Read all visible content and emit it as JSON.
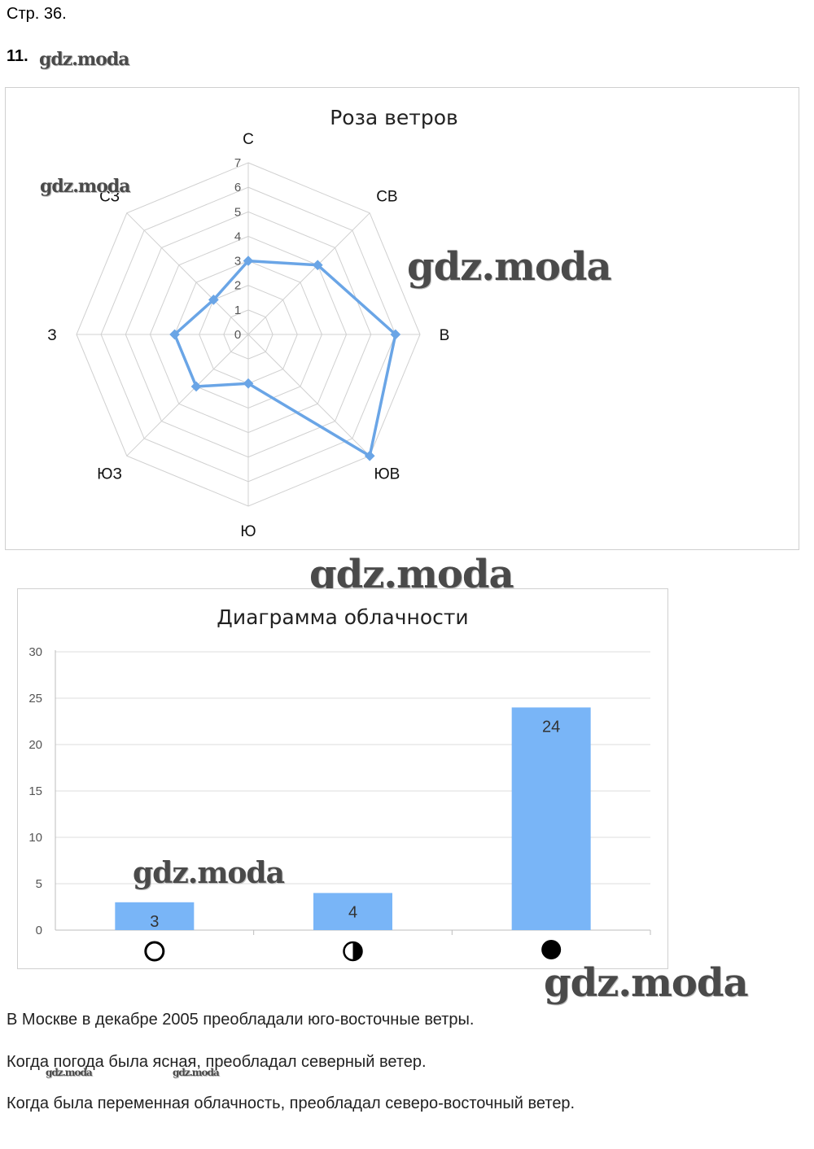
{
  "header": {
    "page": "Стр. 36.",
    "task": "11."
  },
  "watermark": "gdz.moda",
  "colors": {
    "series": "#6aa5e6",
    "bar": "#79b5f7",
    "grid": "#d0d0d0"
  },
  "chart_data": [
    {
      "type": "radar",
      "title": "Роза ветров",
      "categories": [
        "С",
        "СВ",
        "В",
        "ЮВ",
        "Ю",
        "ЮЗ",
        "З",
        "СЗ"
      ],
      "values": [
        3,
        4,
        6,
        7,
        2,
        3,
        3,
        2
      ],
      "rlim": [
        0,
        7
      ],
      "ticks": [
        "0",
        "1",
        "2",
        "3",
        "4",
        "5",
        "6",
        "7"
      ],
      "grid": true
    },
    {
      "type": "bar",
      "title": "Диаграмма облачности",
      "categories": [
        "clear-sky-icon",
        "partly-cloudy-icon",
        "overcast-icon"
      ],
      "values": [
        3,
        4,
        24
      ],
      "data_labels": [
        "3",
        "4",
        "24"
      ],
      "ylim": [
        0,
        30
      ],
      "yticks": [
        "0",
        "5",
        "10",
        "15",
        "20",
        "25",
        "30"
      ],
      "grid": true
    }
  ],
  "text": {
    "line1": "В Москве в декабре 2005 преобладали юго-восточные ветры.",
    "line2": "Когда погода была ясная, преобладал северный ветер.",
    "line3": "Когда была переменная облачность, преобладал северо-восточный ветер."
  }
}
